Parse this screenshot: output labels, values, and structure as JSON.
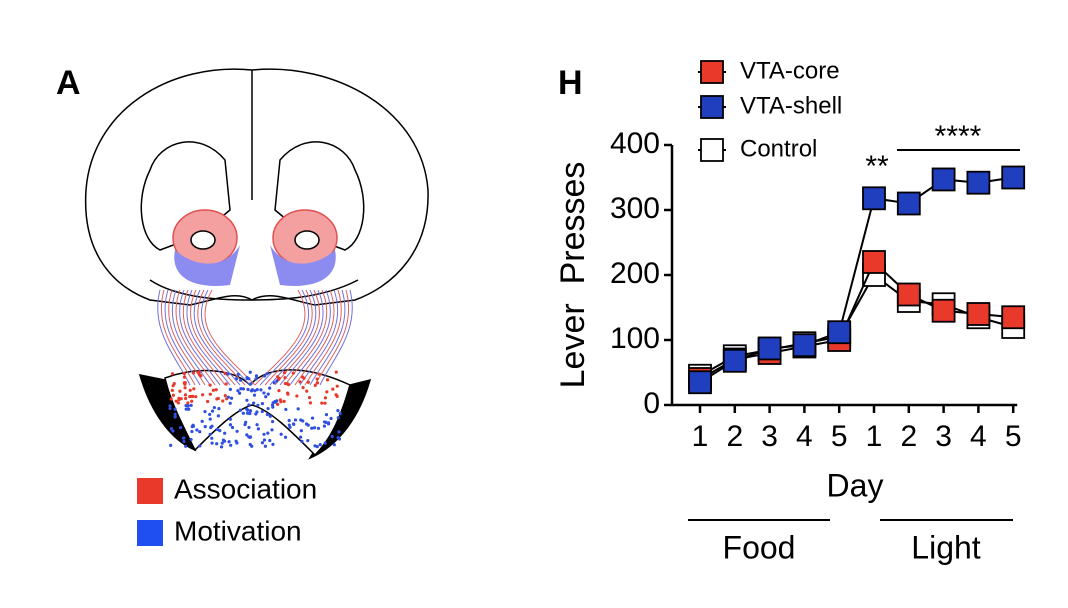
{
  "diagram": {
    "label": "A",
    "legend": [
      "Association",
      "Motivation"
    ]
  },
  "chart_data": {
    "type": "line",
    "label": "H",
    "categories": [
      "1",
      "2",
      "3",
      "4",
      "5",
      "1",
      "2",
      "3",
      "4",
      "5"
    ],
    "group_labels": [
      "Food",
      "Light"
    ],
    "xlabel": "Day",
    "ylabel": "Lever  Presses",
    "ylim": [
      0,
      400
    ],
    "yticks": [
      0,
      100,
      200,
      300,
      400
    ],
    "annotations": [
      "**",
      "****"
    ],
    "series": [
      {
        "name": "VTA-core",
        "color": "#e8392b",
        "values": [
          40,
          70,
          80,
          90,
          100,
          220,
          170,
          145,
          140,
          135
        ]
      },
      {
        "name": "VTA-shell",
        "color": "#1f3fbf",
        "values": [
          35,
          68,
          87,
          92,
          112,
          318,
          310,
          347,
          342,
          350
        ]
      },
      {
        "name": "Control",
        "color": "#ffffff",
        "values": [
          45,
          75,
          85,
          95,
          105,
          200,
          160,
          155,
          135,
          120
        ]
      }
    ]
  }
}
